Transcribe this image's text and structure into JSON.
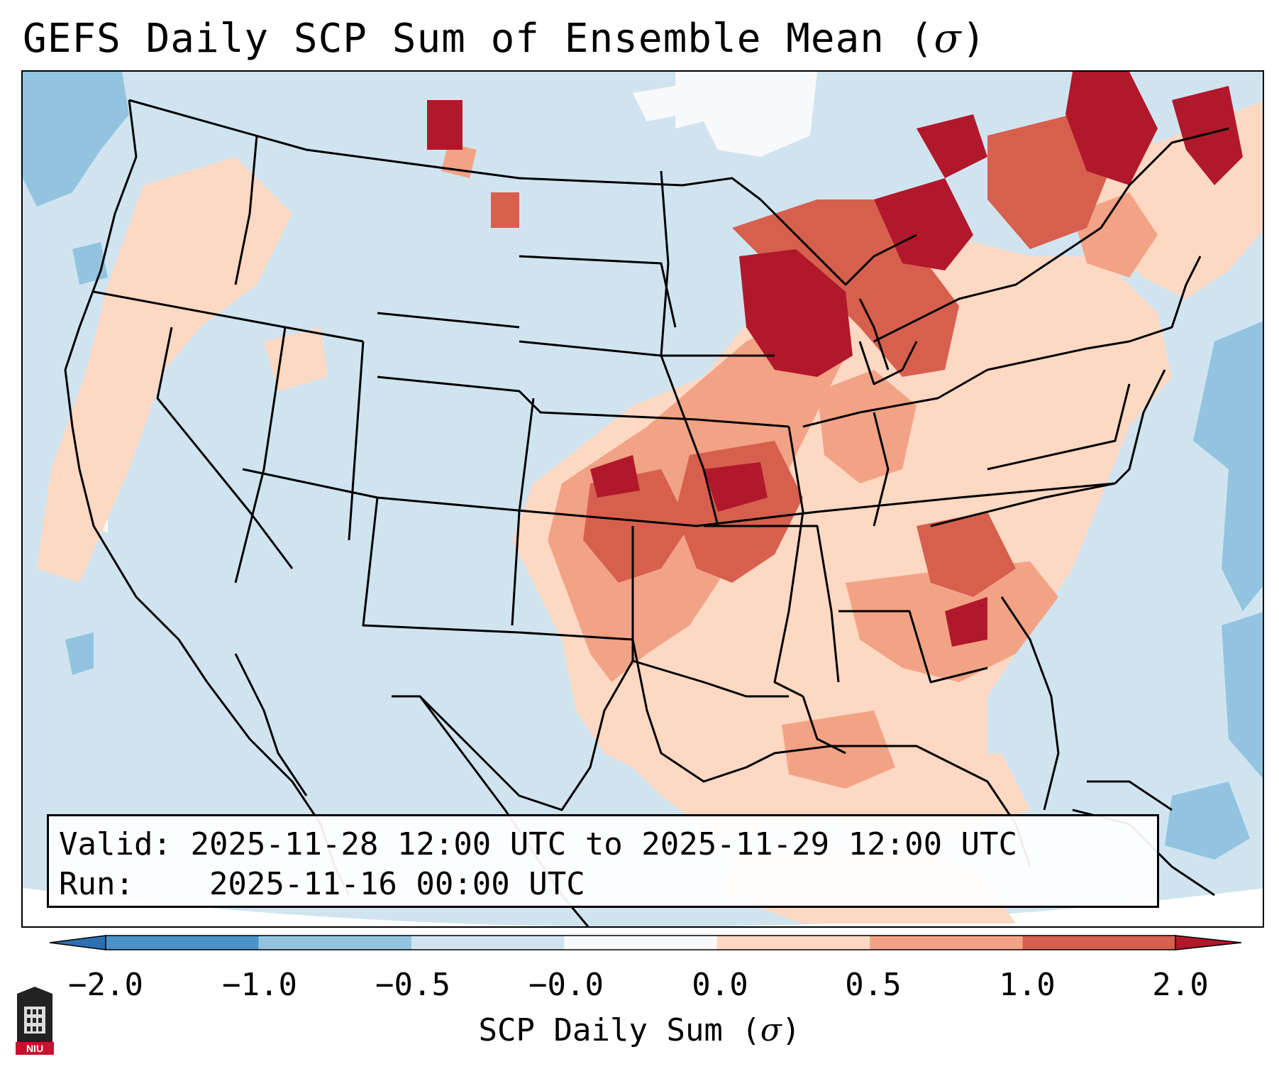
{
  "title": {
    "text": "GEFS Daily SCP Sum of Ensemble Mean (",
    "symbol": "σ",
    "close": ")"
  },
  "info": {
    "valid_label": "Valid:",
    "valid_value": "2025-11-28 12:00 UTC to 2025-11-29 12:00 UTC",
    "run_label": "Run:",
    "run_value": "2025-11-16 00:00 UTC"
  },
  "colorbar": {
    "label_text": "SCP Daily Sum (",
    "label_symbol": "σ",
    "label_close": ")",
    "ticks": [
      "−2.0",
      "−1.0",
      "−0.5",
      "−0.0",
      "0.0",
      "0.5",
      "1.0",
      "2.0"
    ],
    "bins": [
      {
        "range": "< -2.0",
        "color": "#2c6fb3"
      },
      {
        "range": "-2.0 to -1.0",
        "color": "#4a93c8"
      },
      {
        "range": "-1.0 to -0.5",
        "color": "#92c4e0"
      },
      {
        "range": "-0.5 to -0.0",
        "color": "#d0e4f0"
      },
      {
        "range": "-0.0 to 0.0",
        "color": "#f8f9fa"
      },
      {
        "range": "0.0 to 0.5",
        "color": "#fdd8c3"
      },
      {
        "range": "0.5 to 1.0",
        "color": "#f2a385"
      },
      {
        "range": "1.0 to 2.0",
        "color": "#d6604d"
      },
      {
        "range": "> 2.0",
        "color": "#b2182b"
      }
    ]
  },
  "map_layers": {
    "background": "ensemble mean anomaly field over North America",
    "borders": "country, state, and province boundaries with coastlines"
  },
  "logo": {
    "text": "NIU"
  }
}
